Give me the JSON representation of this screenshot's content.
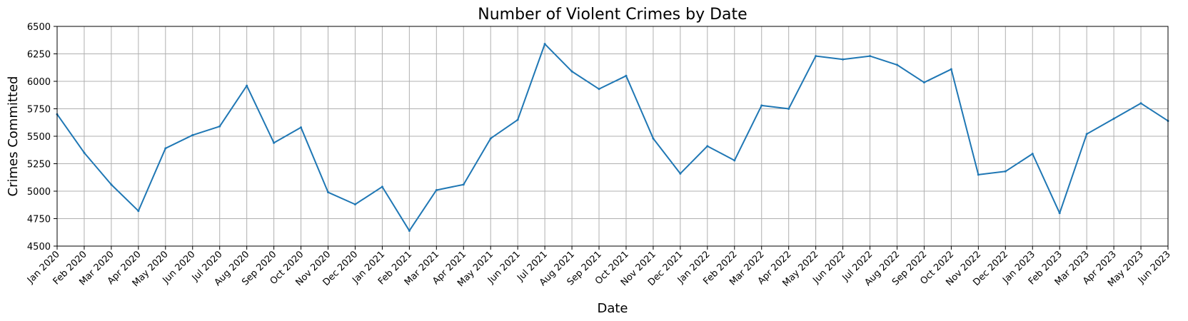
{
  "chart_data": {
    "type": "line",
    "title": "Number of Violent Crimes by Date",
    "xlabel": "Date",
    "ylabel": "Crimes Committed",
    "ylim": [
      4500,
      6500
    ],
    "yticks": [
      4500,
      4750,
      5000,
      5250,
      5500,
      5750,
      6000,
      6250,
      6500
    ],
    "grid": true,
    "legend": "none",
    "line_color": "#1f77b4",
    "grid_color": "#b0b0b0",
    "x": [
      "Jan 2020",
      "Feb 2020",
      "Mar 2020",
      "Apr 2020",
      "May 2020",
      "Jun 2020",
      "Jul 2020",
      "Aug 2020",
      "Sep 2020",
      "Oct 2020",
      "Nov 2020",
      "Dec 2020",
      "Jan 2021",
      "Feb 2021",
      "Mar 2021",
      "Apr 2021",
      "May 2021",
      "Jun 2021",
      "Jul 2021",
      "Aug 2021",
      "Sep 2021",
      "Oct 2021",
      "Nov 2021",
      "Dec 2021",
      "Jan 2022",
      "Feb 2022",
      "Mar 2022",
      "Apr 2022",
      "May 2022",
      "Jun 2022",
      "Jul 2022",
      "Aug 2022",
      "Sep 2022",
      "Oct 2022",
      "Nov 2022",
      "Dec 2022",
      "Jan 2023",
      "Feb 2023",
      "Mar 2023",
      "Apr 2023",
      "May 2023",
      "Jun 2023"
    ],
    "series": [
      {
        "values": [
          5700,
          5350,
          5060,
          4820,
          5390,
          5510,
          5590,
          5960,
          5440,
          5580,
          4990,
          4880,
          5040,
          4640,
          5010,
          5060,
          5480,
          5650,
          6340,
          6090,
          5930,
          6050,
          5480,
          5160,
          5410,
          5280,
          5780,
          5750,
          6230,
          6200,
          6230,
          6150,
          5990,
          6110,
          5150,
          5180,
          5340,
          4800,
          5520,
          5660,
          5800,
          5640
        ]
      }
    ]
  }
}
